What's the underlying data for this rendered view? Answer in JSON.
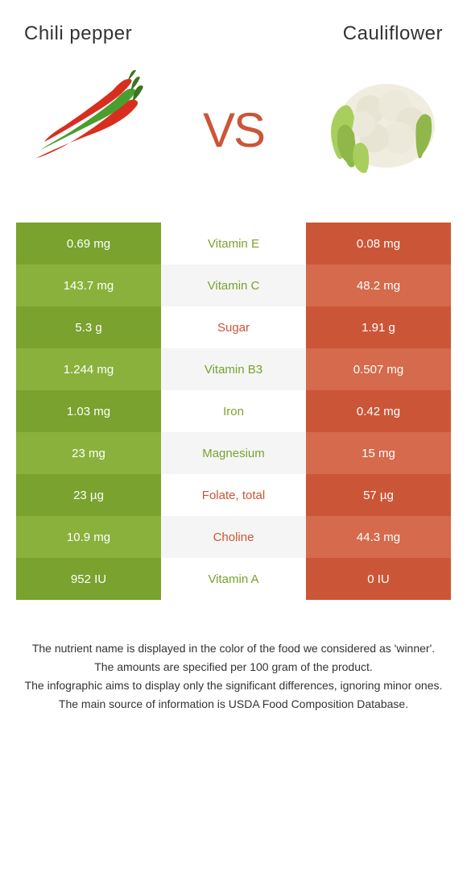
{
  "header": {
    "left": "Chili pepper",
    "right": "Cauliflower",
    "vs": "VS"
  },
  "colors": {
    "green_dark": "#79a22e",
    "green_light": "#8ab13c",
    "red_dark": "#cb5637",
    "red_light": "#d56a4c",
    "mid_grey": "#f5f5f5",
    "mid_white": "#ffffff",
    "text": "#333333"
  },
  "rows": [
    {
      "left": "0.69 mg",
      "nutrient": "Vitamin E",
      "right": "0.08 mg",
      "winner": "left"
    },
    {
      "left": "143.7 mg",
      "nutrient": "Vitamin C",
      "right": "48.2 mg",
      "winner": "left"
    },
    {
      "left": "5.3 g",
      "nutrient": "Sugar",
      "right": "1.91 g",
      "winner": "right"
    },
    {
      "left": "1.244 mg",
      "nutrient": "Vitamin B3",
      "right": "0.507 mg",
      "winner": "left"
    },
    {
      "left": "1.03 mg",
      "nutrient": "Iron",
      "right": "0.42 mg",
      "winner": "left"
    },
    {
      "left": "23 mg",
      "nutrient": "Magnesium",
      "right": "15 mg",
      "winner": "left"
    },
    {
      "left": "23 µg",
      "nutrient": "Folate, total",
      "right": "57 µg",
      "winner": "right"
    },
    {
      "left": "10.9 mg",
      "nutrient": "Choline",
      "right": "44.3 mg",
      "winner": "right"
    },
    {
      "left": "952 IU",
      "nutrient": "Vitamin A",
      "right": "0 IU",
      "winner": "left"
    }
  ],
  "footer": {
    "line1": "The nutrient name is displayed in the color of the food we considered as 'winner'.",
    "line2": "The amounts are specified per 100 gram of the product.",
    "line3": "The infographic aims to display only the significant differences, ignoring minor ones.",
    "line4": "The main source of information is USDA Food Composition Database."
  }
}
